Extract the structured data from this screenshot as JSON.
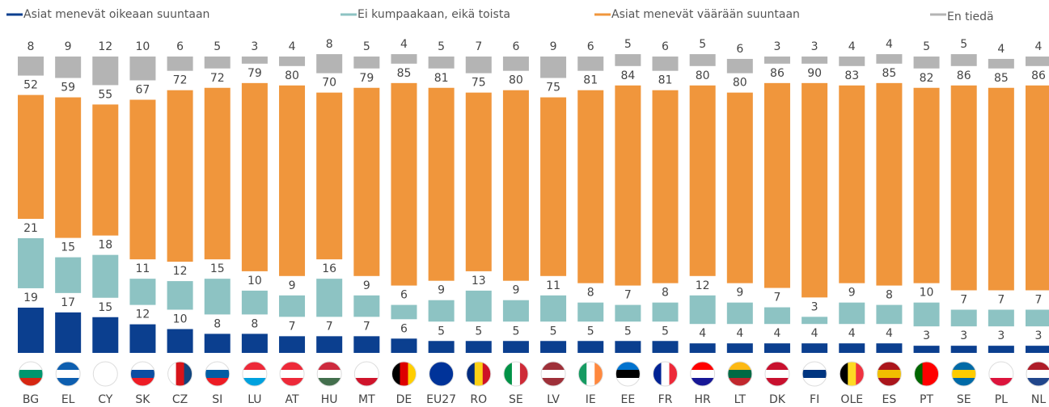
{
  "chart_data": {
    "type": "stacked_bar",
    "categories": [
      "BG",
      "EL",
      "CY",
      "SK",
      "CZ",
      "SI",
      "LU",
      "AT",
      "HU",
      "MT",
      "DE",
      "EU27",
      "RO",
      "SE",
      "LV",
      "IE",
      "EE",
      "FR",
      "HR",
      "LT",
      "DK",
      "FI",
      "OLE",
      "ES",
      "PT",
      "SE",
      "PL",
      "NL"
    ],
    "series": [
      {
        "name": "Asiat menevät oikeaan suuntaan",
        "color": "#0b3f8f",
        "values": [
          19,
          17,
          15,
          12,
          10,
          8,
          8,
          7,
          7,
          7,
          6,
          5,
          5,
          5,
          5,
          5,
          5,
          5,
          4,
          4,
          4,
          4,
          4,
          4,
          3,
          3,
          3,
          3
        ]
      },
      {
        "name": "Ei kumpaakaan, eikä toista",
        "color": "#8dc3c3",
        "values": [
          21,
          15,
          18,
          11,
          12,
          15,
          10,
          9,
          16,
          9,
          6,
          9,
          13,
          9,
          11,
          8,
          7,
          8,
          12,
          9,
          7,
          3,
          9,
          8,
          10,
          7,
          7,
          7
        ]
      },
      {
        "name": "Asiat menevät väärään suuntaan",
        "color": "#f0963c",
        "values": [
          52,
          59,
          55,
          67,
          72,
          72,
          79,
          80,
          70,
          79,
          85,
          81,
          75,
          80,
          75,
          81,
          84,
          81,
          80,
          80,
          86,
          90,
          83,
          85,
          82,
          86,
          85,
          86
        ]
      },
      {
        "name": "En tiedä",
        "color": "#b4b4b4",
        "values": [
          8,
          9,
          12,
          10,
          6,
          5,
          3,
          4,
          8,
          5,
          4,
          5,
          7,
          6,
          9,
          6,
          5,
          6,
          5,
          6,
          3,
          3,
          4,
          4,
          5,
          5,
          4,
          4
        ]
      }
    ]
  }
}
